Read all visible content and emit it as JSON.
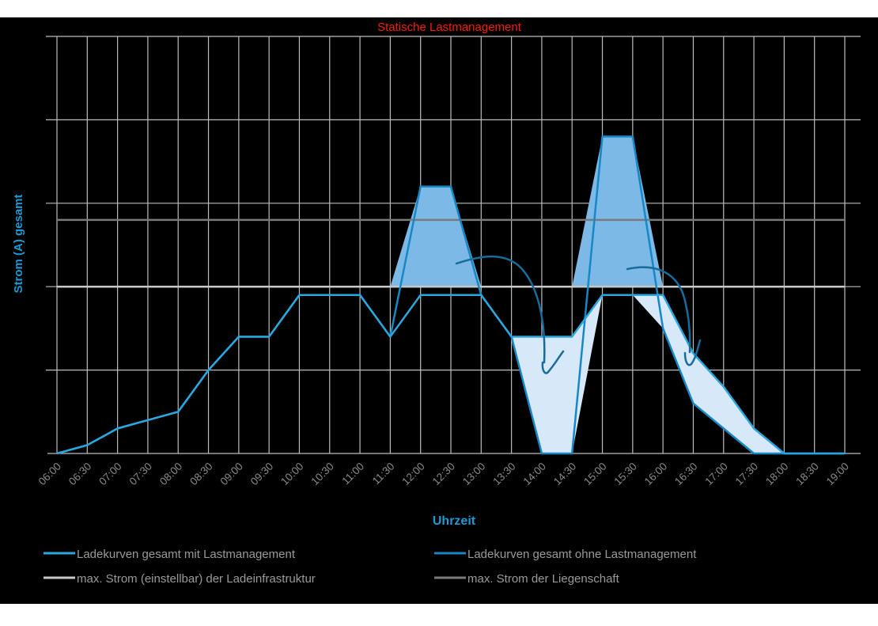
{
  "chart_data": {
    "type": "line",
    "title": "Statische Lastmanagement",
    "xlabel": "Uhrzeit",
    "ylabel": "Strom (A) gesamt",
    "ylim": [
      0,
      5
    ],
    "grid": true,
    "legend_position": "bottom",
    "categories": [
      "06:00",
      "06:30",
      "07:00",
      "07:30",
      "08:00",
      "08:30",
      "09:00",
      "09:30",
      "10:00",
      "10:30",
      "11:00",
      "11:30",
      "12:00",
      "12:30",
      "13:00",
      "13:30",
      "14:00",
      "14:30",
      "15:00",
      "15:30",
      "16:00",
      "16:30",
      "17:00",
      "17:30",
      "18:00",
      "18:30",
      "19:00"
    ],
    "series": [
      {
        "name": "Ladekurven gesamt mit Lastmanagement",
        "color": "#2aa7de",
        "values": [
          0,
          0.1,
          0.3,
          0.4,
          0.5,
          1.0,
          1.4,
          1.4,
          1.9,
          1.9,
          1.9,
          1.4,
          1.9,
          1.9,
          1.9,
          1.4,
          1.4,
          1.4,
          1.9,
          1.9,
          1.9,
          1.2,
          0.8,
          0.3,
          0,
          0,
          0
        ]
      },
      {
        "name": "Ladekurven gesamt ohne Lastmanagement",
        "color": "#1688c4",
        "values": [
          0,
          0.1,
          0.3,
          0.4,
          0.5,
          1.0,
          1.4,
          1.4,
          1.9,
          1.9,
          1.9,
          1.4,
          3.2,
          3.2,
          1.9,
          1.4,
          0,
          0,
          3.8,
          3.8,
          1.5,
          0.6,
          0.3,
          0,
          0,
          0,
          0
        ]
      }
    ],
    "reference_lines": [
      {
        "name": "max. Strom (einstellbar) der Ladeinfrastruktur",
        "value": 2.0,
        "color": "#c8c8c8"
      },
      {
        "name": "max. Strom der Liegenschaft",
        "value": 2.8,
        "color": "#7a7a7a"
      }
    ],
    "fills": {
      "excess_color": "#7db9e6",
      "shifted_color": "#d7e8f8",
      "arrow_color": "#176c9c"
    }
  }
}
